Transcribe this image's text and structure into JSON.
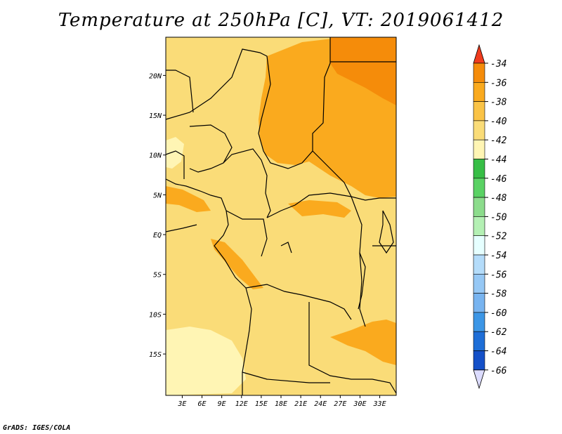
{
  "title": "Temperature at 250hPa [C], VT: 2019061412",
  "credit": "GrADS: IGES/COLA",
  "lat_labels": [
    "20N",
    "15N",
    "10N",
    "5N",
    "EQ",
    "5S",
    "10S",
    "15S"
  ],
  "lat_values": [
    20,
    15,
    10,
    5,
    0,
    -5,
    -10,
    -15
  ],
  "lon_labels": [
    "3E",
    "6E",
    "9E",
    "12E",
    "15E",
    "18E",
    "21E",
    "24E",
    "27E",
    "30E",
    "33E"
  ],
  "lon_values": [
    3,
    6,
    9,
    12,
    15,
    18,
    21,
    24,
    27,
    30,
    33
  ],
  "colorbar": {
    "labels": [
      "-34",
      "-36",
      "-38",
      "-40",
      "-42",
      "-44",
      "-46",
      "-48",
      "-50",
      "-52",
      "-54",
      "-56",
      "-58",
      "-60",
      "-62",
      "-64",
      "-66"
    ],
    "colors": [
      "#f05a14",
      "#f58c0a",
      "#faaa1e",
      "#fac346",
      "#fadc78",
      "#fff5b4",
      "#37be46",
      "#5ad264",
      "#8cdc8c",
      "#b4f0b4",
      "#e6ffff",
      "#b4dcfa",
      "#96c8f5",
      "#78b4f0",
      "#3c96e6",
      "#1e6ed7",
      "#1450c8",
      "#0a32aa",
      "#001e78"
    ],
    "top_arrow_color": "#f03c1e",
    "bottom_arrow_color": "#dcdcff"
  }
}
